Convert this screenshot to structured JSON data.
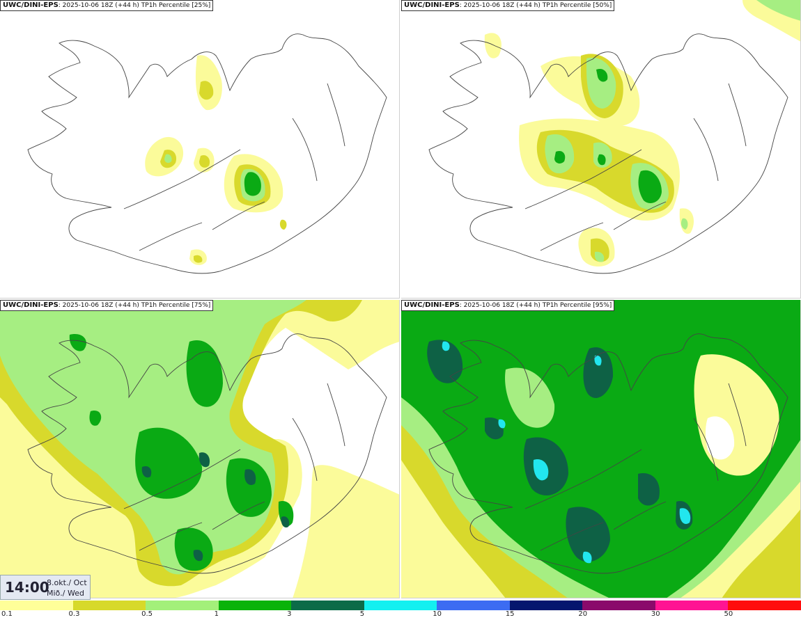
{
  "panels": [
    {
      "source": "UWC/DINI-EPS",
      "run": ": 2025-10-06 18Z (+44 h)",
      "field": "TP1h Percentile",
      "pct": "[25%]"
    },
    {
      "source": "UWC/DINI-EPS",
      "run": ": 2025-10-06 18Z (+44 h)",
      "field": "TP1h Percentile",
      "pct": "[50%]"
    },
    {
      "source": "UWC/DINI-EPS",
      "run": ": 2025-10-06 18Z (+44 h)",
      "field": "TP1h Percentile",
      "pct": "[75%]"
    },
    {
      "source": "UWC/DINI-EPS",
      "run": ": 2025-10-06 18Z (+44 h)",
      "field": "TP1h Percentile",
      "pct": "[95%]"
    }
  ],
  "valid_time": {
    "time": "14:00",
    "date": "8.okt./ Oct",
    "weekday": "Mið./ Wed"
  },
  "legend": {
    "thresholds": [
      "0.1",
      "0.3",
      "0.5",
      "1",
      "3",
      "5",
      "10",
      "15",
      "20",
      "30",
      "50"
    ],
    "colors": [
      "#ffff99",
      "#d7d92a",
      "#a3f07a",
      "#0ab30a",
      "#0c6b48",
      "#14f0f0",
      "#3c6cf2",
      "#05166e",
      "#8a0a6b",
      "#ff1493",
      "#ff0d0d"
    ]
  },
  "map_colors": {
    "c1": "#fbfb9a",
    "c2": "#d8d92c",
    "c3": "#a6ee82",
    "c4": "#0aaa14",
    "c5": "#0e6145",
    "c6": "#22e6ee",
    "coast": "#444444"
  }
}
